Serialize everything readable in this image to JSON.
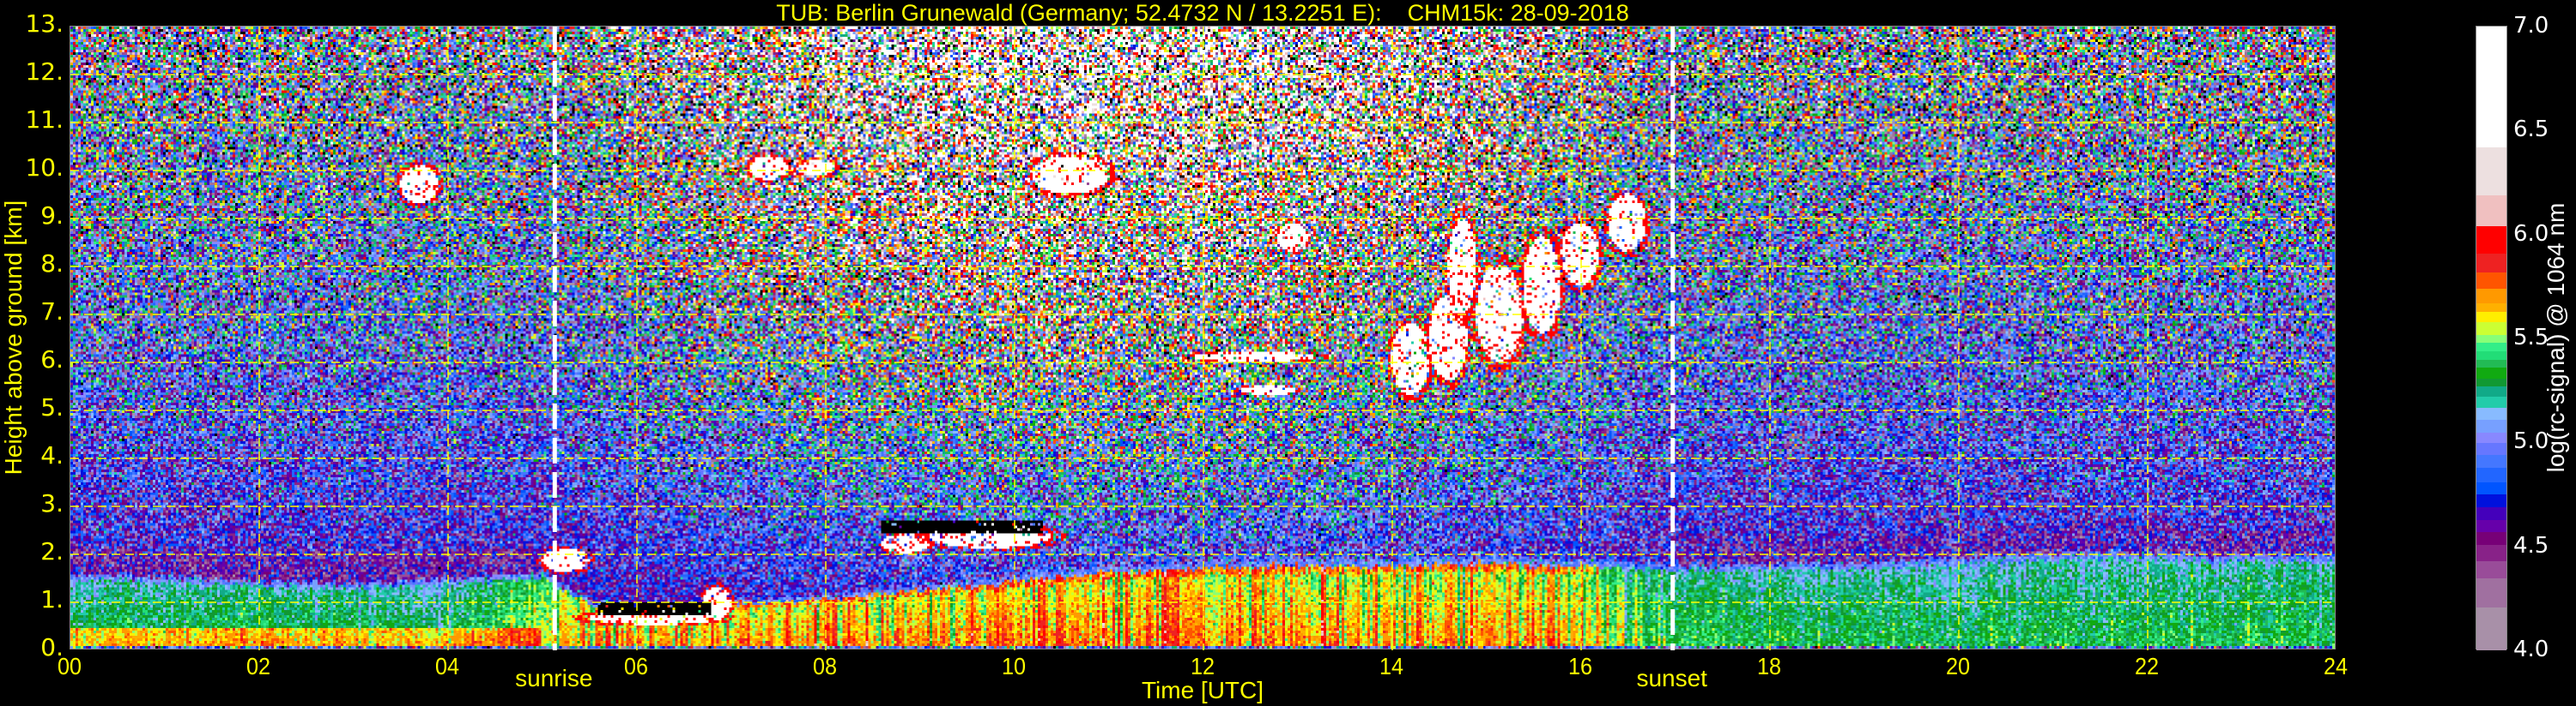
{
  "chart_data": {
    "type": "heatmap",
    "title": "TUB: Berlin Grunewald (Germany; 52.4732 N / 13.2251 E):    CHM15k: 28-09-2018",
    "xlabel": "Time [UTC]",
    "ylabel": "Height above ground [km]",
    "xlim": [
      0,
      24
    ],
    "ylim": [
      0,
      13
    ],
    "x_ticks": [
      0,
      2,
      4,
      6,
      8,
      10,
      12,
      14,
      16,
      18,
      20,
      22,
      24
    ],
    "x_tick_labels": [
      "00",
      "02",
      "04",
      "06",
      "08",
      "10",
      "12",
      "14",
      "16",
      "18",
      "20",
      "22",
      "24"
    ],
    "y_ticks": [
      0,
      1,
      2,
      3,
      4,
      5,
      6,
      7,
      8,
      9,
      10,
      11,
      12,
      13
    ],
    "y_tick_labels": [
      "0.",
      "1.",
      "2.",
      "3.",
      "4.",
      "5.",
      "6.",
      "7.",
      "8.",
      "9.",
      "10.",
      "11.",
      "12.",
      "13."
    ],
    "grid": true,
    "grid_color": "#ffff00",
    "annotations": [
      {
        "label": "sunrise",
        "time": 5.13
      },
      {
        "label": "sunset",
        "time": 16.97
      }
    ],
    "colorbar": {
      "label": "log(rc-signal) @ 1064 nm",
      "range": [
        4.0,
        7.0
      ],
      "ticks": [
        4.0,
        4.5,
        5.0,
        5.5,
        6.0,
        6.5,
        7.0
      ],
      "tick_labels": [
        "4.0",
        "4.5",
        "5.0",
        "5.5",
        "6.0",
        "6.5",
        "7.0"
      ],
      "segments": [
        [
          4.0,
          "#a890a8"
        ],
        [
          4.21,
          "#a070a0"
        ],
        [
          4.35,
          "#994c99"
        ],
        [
          4.43,
          "#882288"
        ],
        [
          4.51,
          "#770077"
        ],
        [
          4.57,
          "#6600aa"
        ],
        [
          4.63,
          "#4400bb"
        ],
        [
          4.69,
          "#0011dd"
        ],
        [
          4.75,
          "#0055ff"
        ],
        [
          4.81,
          "#2266ff"
        ],
        [
          4.88,
          "#4477ff"
        ],
        [
          4.94,
          "#6677ff"
        ],
        [
          5.0,
          "#8888ff"
        ],
        [
          5.05,
          "#77a0ff"
        ],
        [
          5.11,
          "#88bbff"
        ],
        [
          5.17,
          "#22ccaa"
        ],
        [
          5.22,
          "#11aa88"
        ],
        [
          5.27,
          "#119933"
        ],
        [
          5.31,
          "#11aa11"
        ],
        [
          5.36,
          "#22bb55"
        ],
        [
          5.4,
          "#22dd77"
        ],
        [
          5.44,
          "#33ee88"
        ],
        [
          5.48,
          "#88ff77"
        ],
        [
          5.52,
          "#ccff33"
        ],
        [
          5.58,
          "#ffee00"
        ],
        [
          5.63,
          "#ffb000"
        ],
        [
          5.67,
          "#ff9900"
        ],
        [
          5.74,
          "#ff5500"
        ],
        [
          5.82,
          "#ee2222"
        ],
        [
          5.91,
          "#ff0000"
        ],
        [
          6.04,
          "#f0c0c0"
        ],
        [
          6.19,
          "#ede0e0"
        ],
        [
          6.42,
          "#ffffff"
        ]
      ]
    },
    "boundary_layer_top_km": [
      [
        0,
        1.55
      ],
      [
        1,
        1.5
      ],
      [
        2,
        1.4
      ],
      [
        3,
        1.35
      ],
      [
        4,
        1.45
      ],
      [
        5,
        1.6
      ],
      [
        5.5,
        1.0
      ],
      [
        6,
        0.9
      ],
      [
        7,
        1.0
      ],
      [
        8,
        1.1
      ],
      [
        9,
        1.3
      ],
      [
        10,
        1.5
      ],
      [
        11,
        1.7
      ],
      [
        12,
        1.8
      ],
      [
        13,
        1.85
      ],
      [
        14,
        1.85
      ],
      [
        15,
        1.9
      ],
      [
        16,
        1.85
      ],
      [
        17,
        1.75
      ],
      [
        18,
        1.75
      ],
      [
        19,
        1.8
      ],
      [
        20,
        1.9
      ],
      [
        21,
        2.0
      ],
      [
        22,
        2.0
      ],
      [
        23,
        1.95
      ],
      [
        24,
        1.95
      ]
    ],
    "boundary_layer_signal": [
      [
        0,
        5.35
      ],
      [
        2,
        5.4
      ],
      [
        4,
        5.35
      ],
      [
        5.5,
        5.7
      ],
      [
        8,
        5.75
      ],
      [
        12,
        5.72
      ],
      [
        16,
        5.7
      ],
      [
        17,
        5.4
      ],
      [
        20,
        5.35
      ],
      [
        24,
        5.4
      ]
    ],
    "clouds": [
      {
        "time": [
          3.5,
          3.9
        ],
        "height_km": [
          9.3,
          10.1
        ]
      },
      {
        "time": [
          7.2,
          7.6
        ],
        "height_km": [
          9.8,
          10.3
        ]
      },
      {
        "time": [
          7.7,
          8.1
        ],
        "height_km": [
          9.9,
          10.2
        ]
      },
      {
        "time": [
          10.2,
          11.0
        ],
        "height_km": [
          9.5,
          10.3
        ]
      },
      {
        "time": [
          8.6,
          9.1
        ],
        "height_km": [
          2.0,
          2.4
        ]
      },
      {
        "time": [
          9.1,
          10.4
        ],
        "height_km": [
          2.1,
          2.6
        ]
      },
      {
        "time": [
          5.0,
          5.5
        ],
        "height_km": [
          1.6,
          2.1
        ]
      },
      {
        "time": [
          5.5,
          6.9
        ],
        "height_km": [
          0.5,
          0.8
        ]
      },
      {
        "time": [
          6.7,
          7.0
        ],
        "height_km": [
          0.6,
          1.3
        ]
      },
      {
        "time": [
          11.9,
          13.2
        ],
        "height_km": [
          6.0,
          6.2
        ]
      },
      {
        "time": [
          12.4,
          13.0
        ],
        "height_km": [
          5.3,
          5.5
        ]
      },
      {
        "time": [
          14.0,
          14.4
        ],
        "height_km": [
          5.3,
          6.8
        ]
      },
      {
        "time": [
          14.4,
          14.8
        ],
        "height_km": [
          5.6,
          7.4
        ]
      },
      {
        "time": [
          14.6,
          14.9
        ],
        "height_km": [
          7.0,
          9.0
        ]
      },
      {
        "time": [
          14.9,
          15.4
        ],
        "height_km": [
          6.0,
          8.0
        ]
      },
      {
        "time": [
          15.4,
          15.8
        ],
        "height_km": [
          6.6,
          8.6
        ]
      },
      {
        "time": [
          15.8,
          16.2
        ],
        "height_km": [
          7.6,
          8.9
        ]
      },
      {
        "time": [
          16.3,
          16.7
        ],
        "height_km": [
          8.3,
          9.5
        ]
      },
      {
        "time": [
          12.8,
          13.1
        ],
        "height_km": [
          8.3,
          8.9
        ]
      }
    ],
    "low_signal_regions": [
      {
        "time": [
          5.6,
          6.8
        ],
        "height_km": [
          0.7,
          0.95
        ]
      },
      {
        "time": [
          8.6,
          10.3
        ],
        "height_km": [
          2.4,
          2.7
        ]
      }
    ]
  }
}
